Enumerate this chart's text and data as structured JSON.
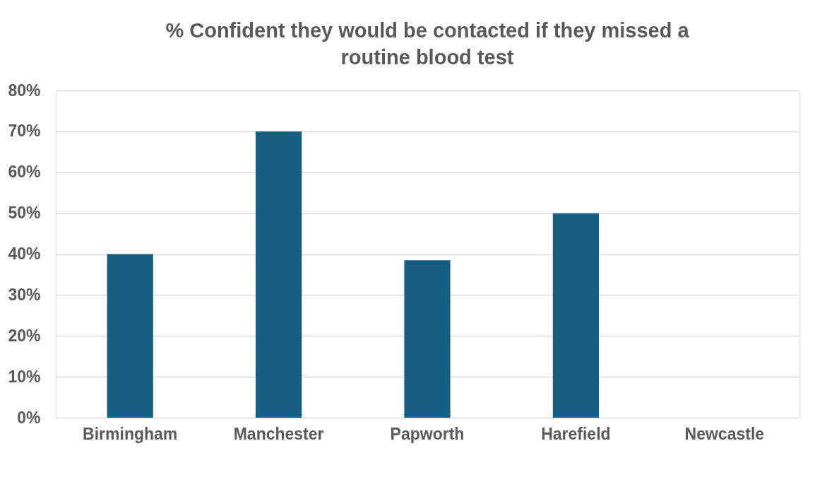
{
  "chart_data": {
    "type": "bar",
    "title": "% Confident they would be contacted if they missed a routine blood test",
    "categories": [
      "Birmingham",
      "Manchester",
      "Papworth",
      "Harefield",
      "Newcastle"
    ],
    "values": [
      40,
      70,
      38.5,
      50,
      0
    ],
    "color": "#175f81",
    "ylim": [
      0,
      80
    ],
    "yticks": [
      {
        "value": 0,
        "label": "0%"
      },
      {
        "value": 10,
        "label": "10%"
      },
      {
        "value": 20,
        "label": "20%"
      },
      {
        "value": 30,
        "label": "30%"
      },
      {
        "value": 40,
        "label": "40%"
      },
      {
        "value": 50,
        "label": "50%"
      },
      {
        "value": 60,
        "label": "60%"
      },
      {
        "value": 70,
        "label": "70%"
      },
      {
        "value": 80,
        "label": "80%"
      }
    ],
    "grid": "y"
  }
}
